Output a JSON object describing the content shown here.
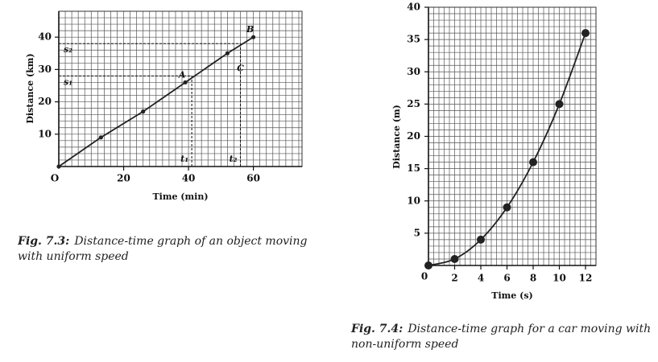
{
  "chart_data": [
    {
      "type": "line",
      "x_label": "Time (min)",
      "y_label": "Distance (km)",
      "origin_label": "O",
      "x": [
        0,
        13,
        26,
        39,
        52,
        60
      ],
      "values": [
        0,
        9,
        17,
        26,
        35,
        40
      ],
      "xlim": [
        0,
        75
      ],
      "ylim": [
        0,
        48
      ],
      "xticks": [
        20,
        40,
        60
      ],
      "yticks": [
        10,
        20,
        30,
        40
      ],
      "grid_step": {
        "x": 2,
        "y": 2
      },
      "grid": true,
      "color": "#222",
      "smooth": false,
      "hlines": [
        {
          "y": 28,
          "label": "s₁"
        },
        {
          "y": 38,
          "label": "s₂"
        }
      ],
      "vlines": [
        {
          "x": 41,
          "label": "t₁",
          "to": 28
        },
        {
          "x": 56,
          "label": "t₂",
          "to": 38
        }
      ],
      "annotations": [
        {
          "text": "A",
          "x": 39,
          "y": 26
        },
        {
          "text": "B",
          "x": 60,
          "y": 40
        },
        {
          "text": "C",
          "x": 57,
          "y": 28
        }
      ],
      "caption": {
        "label": "Fig. 7.3:",
        "text": "Distance-time graph of an object moving with uniform speed"
      }
    },
    {
      "type": "line",
      "x_label": "Time (s)",
      "y_label": "Distance (m)",
      "origin_label": "0",
      "x": [
        0,
        2,
        4,
        6,
        8,
        10,
        12
      ],
      "values": [
        0,
        1,
        4,
        9,
        16,
        25,
        36
      ],
      "xlim": [
        0,
        12.8
      ],
      "ylim": [
        0,
        40
      ],
      "xticks": [
        2,
        4,
        6,
        8,
        10,
        12
      ],
      "yticks": [
        5,
        10,
        15,
        20,
        25,
        30,
        35,
        40
      ],
      "grid_step": {
        "x": 0.4,
        "y": 1
      },
      "grid": true,
      "color": "#222",
      "smooth": true,
      "caption": {
        "label": "Fig. 7.4:",
        "text": "Distance-time graph for a car moving with non-uniform speed"
      }
    }
  ]
}
